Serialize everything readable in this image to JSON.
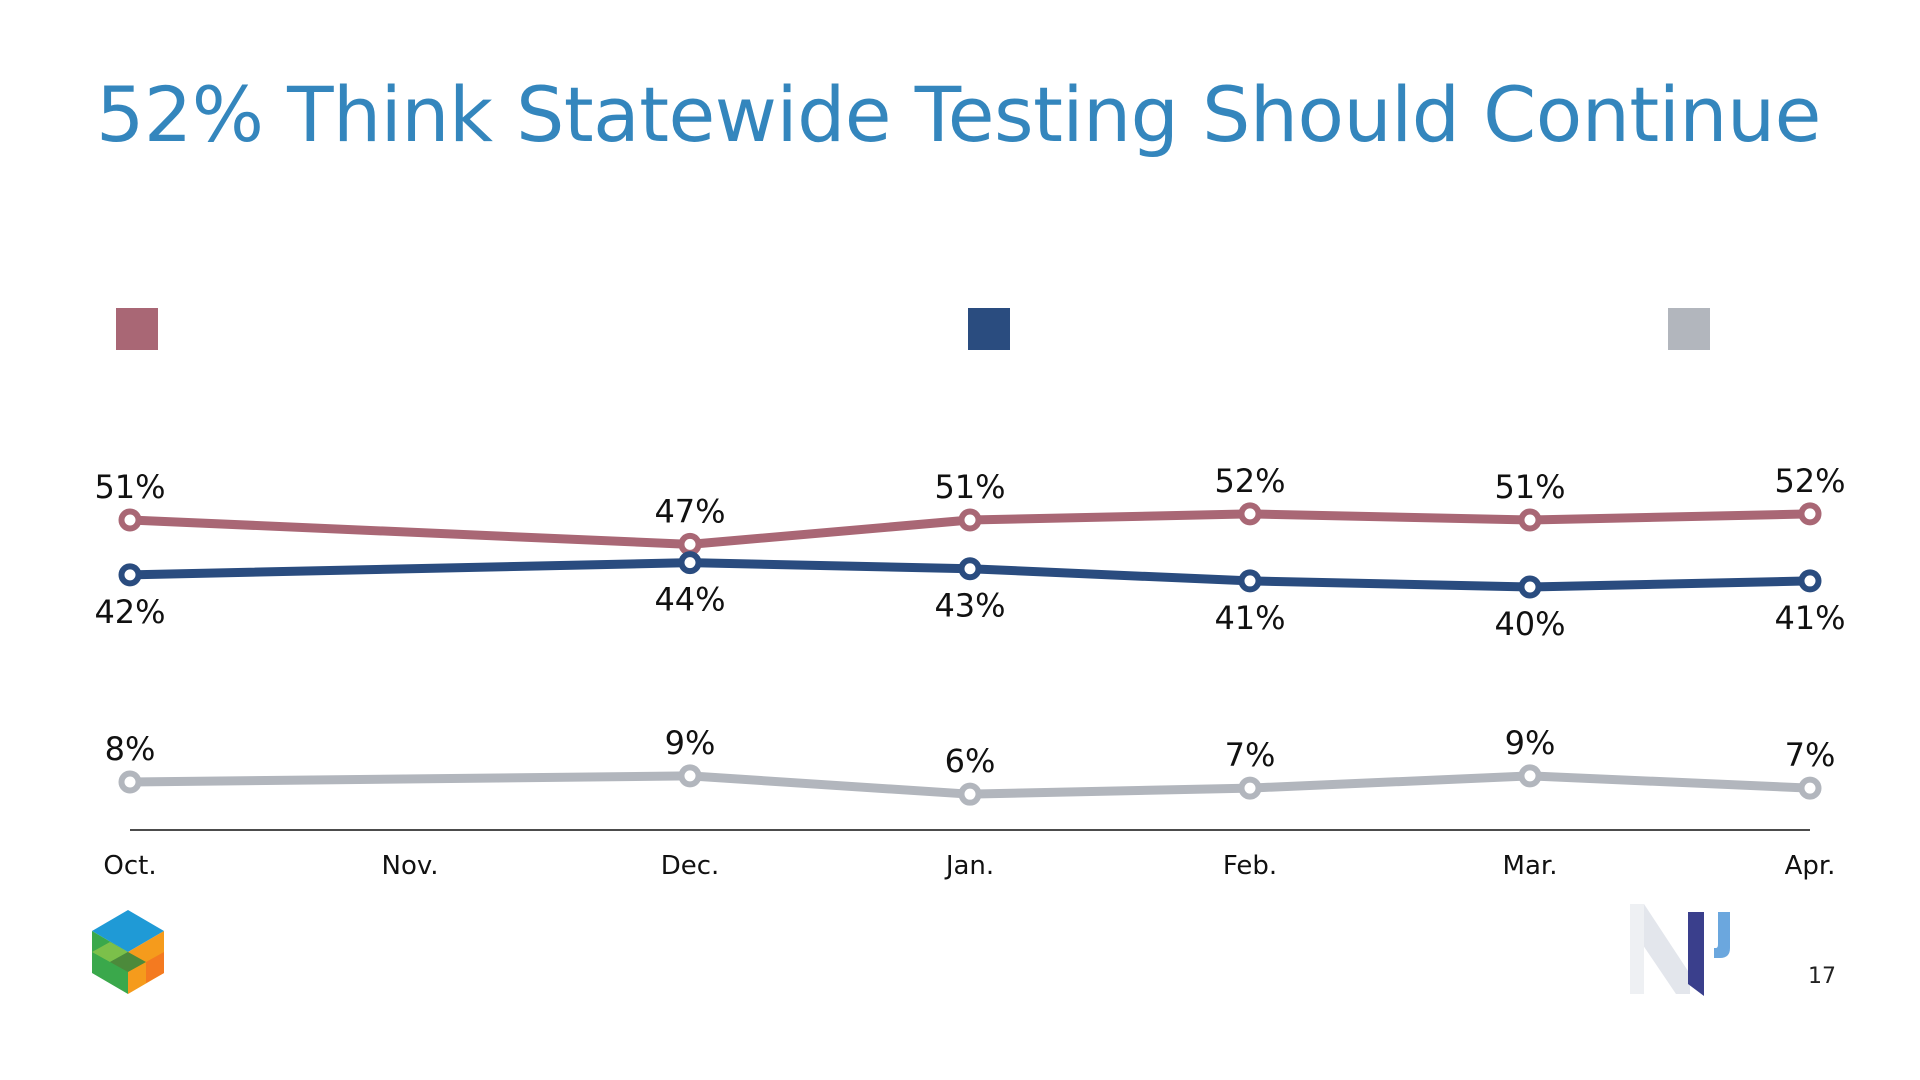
{
  "slide": {
    "title": "52% Think Statewide Testing Should Continue",
    "page_number": "17"
  },
  "chart_data": {
    "type": "line",
    "title": "52% Think Statewide Testing Should Continue",
    "xlabel": "",
    "ylabel": "",
    "x": [
      "Oct.",
      "Nov.",
      "Dec.",
      "Jan.",
      "Feb.",
      "Mar.",
      "Apr."
    ],
    "ylim": [
      0,
      60
    ],
    "grid": false,
    "legend": "top (swatches only, no text)",
    "series": [
      {
        "color": "#a96775",
        "values": [
          51,
          null,
          47,
          51,
          52,
          51,
          52
        ],
        "labels": [
          "51%",
          "",
          "47%",
          "51%",
          "52%",
          "51%",
          "52%"
        ],
        "label_position": "above"
      },
      {
        "color": "#2a4c7f",
        "values": [
          42,
          null,
          44,
          43,
          41,
          40,
          41
        ],
        "labels": [
          "42%",
          "",
          "44%",
          "43%",
          "41%",
          "40%",
          "41%"
        ],
        "label_position": "below"
      },
      {
        "color": "#b2b6bd",
        "values": [
          8,
          null,
          9,
          6,
          7,
          9,
          7
        ],
        "labels": [
          "8%",
          "",
          "9%",
          "6%",
          "7%",
          "9%",
          "7%"
        ],
        "label_position": "above"
      }
    ]
  },
  "icons": {
    "left_logo": "hexagon-cube-logo-icon",
    "right_logo": "np-logo-icon"
  }
}
